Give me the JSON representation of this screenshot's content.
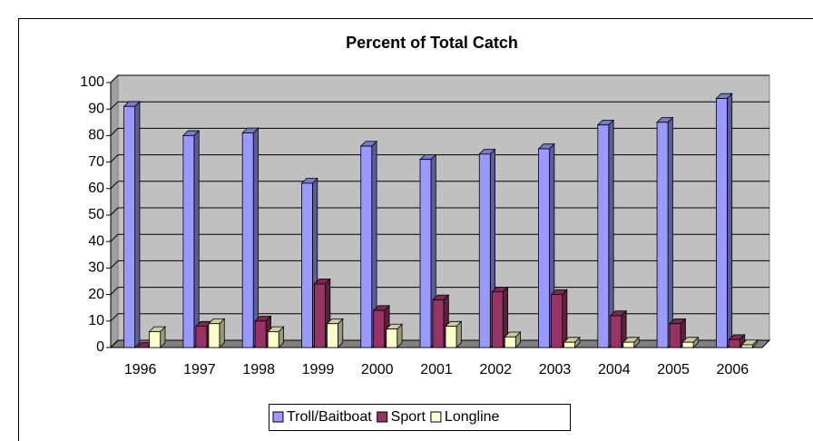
{
  "chart_data": {
    "type": "bar3d",
    "title": "Percent of Total Catch",
    "categories": [
      "1996",
      "1997",
      "1998",
      "1999",
      "2000",
      "2001",
      "2002",
      "2003",
      "2004",
      "2005",
      "2006"
    ],
    "series": [
      {
        "name": "Troll/Baitboat",
        "color": "#9999ff",
        "values": [
          91,
          80,
          81,
          62,
          76,
          71,
          73,
          75,
          84,
          85,
          94
        ]
      },
      {
        "name": "Sport",
        "color": "#993366",
        "values": [
          0,
          8,
          10,
          24,
          14,
          18,
          21,
          20,
          12,
          9,
          3
        ]
      },
      {
        "name": "Longline",
        "color": "#ffffcc",
        "values": [
          6,
          9,
          6,
          9,
          7,
          8,
          4,
          2,
          2,
          2,
          1
        ]
      }
    ],
    "ylim": [
      0,
      100
    ],
    "yticks": [
      0,
      10,
      20,
      30,
      40,
      50,
      60,
      70,
      80,
      90,
      100
    ],
    "grid": true,
    "legend": "bottom"
  }
}
